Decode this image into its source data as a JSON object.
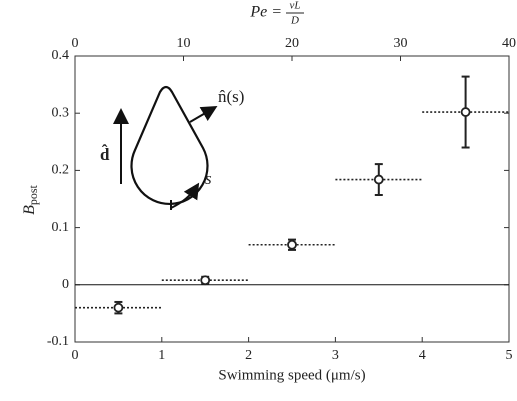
{
  "chart_data": {
    "type": "scatter",
    "x_label": "Swimming speed (μm/s)",
    "y_label": {
      "base": "B",
      "sub": "post"
    },
    "top_label": {
      "lhs": "Pe =",
      "numerator": "vL",
      "denominator": "D"
    },
    "x": [
      0.5,
      1.5,
      2.5,
      3.5,
      4.5
    ],
    "xerr": [
      0.5,
      0.5,
      0.5,
      0.5,
      0.5
    ],
    "values": [
      -0.04,
      0.008,
      0.07,
      0.184,
      0.302
    ],
    "yerr": [
      0.01,
      0.006,
      0.009,
      0.027,
      0.062
    ],
    "color": "#222222",
    "xlim": [
      0,
      5
    ],
    "xticks": [
      0,
      1,
      2,
      3,
      4,
      5
    ],
    "x2lim": [
      0,
      40
    ],
    "x2ticks": [
      0,
      10,
      20,
      30,
      40
    ],
    "ylim": [
      -0.1,
      0.4
    ],
    "yticks": [
      -0.1,
      0,
      0.1,
      0.2,
      0.3,
      0.4
    ],
    "hline": 0,
    "annotations": {
      "normal": "n̂(s)",
      "direction": "d̂",
      "arc": "s"
    }
  }
}
